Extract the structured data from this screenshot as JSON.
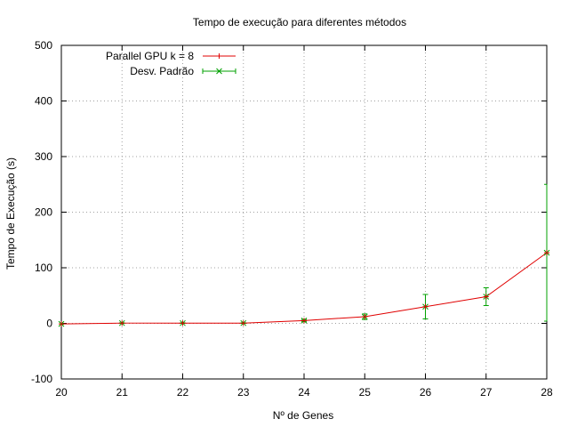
{
  "chart_data": {
    "type": "line",
    "title": "Tempo de execução para diferentes métodos",
    "xlabel": "Nº de Genes",
    "ylabel": "Tempo de Execução (s)",
    "xlim": [
      20,
      28
    ],
    "ylim": [
      -100,
      500
    ],
    "xticks": [
      "20",
      "21",
      "22",
      "23",
      "24",
      "25",
      "26",
      "27",
      "28"
    ],
    "yticks": [
      "-100",
      "0",
      "100",
      "200",
      "300",
      "400",
      "500"
    ],
    "grid": true,
    "legend_position": "top-left",
    "x": [
      20,
      21,
      22,
      23,
      24,
      25,
      26,
      27,
      28
    ],
    "series": [
      {
        "name": "Parallel GPU k = 8",
        "color": "#e00000",
        "marker": "plus",
        "values": [
          -1,
          0.5,
          0.5,
          0.5,
          5,
          12,
          30,
          48,
          127
        ]
      },
      {
        "name": "Desv. Padrão",
        "color": "#00a000",
        "marker": "x",
        "type": "errorbar",
        "values": [
          -1,
          0.5,
          0.5,
          0.5,
          5,
          12,
          30,
          48,
          127
        ],
        "error": [
          0.5,
          0.5,
          0.5,
          0.5,
          2,
          5,
          22,
          16,
          123
        ]
      }
    ]
  }
}
